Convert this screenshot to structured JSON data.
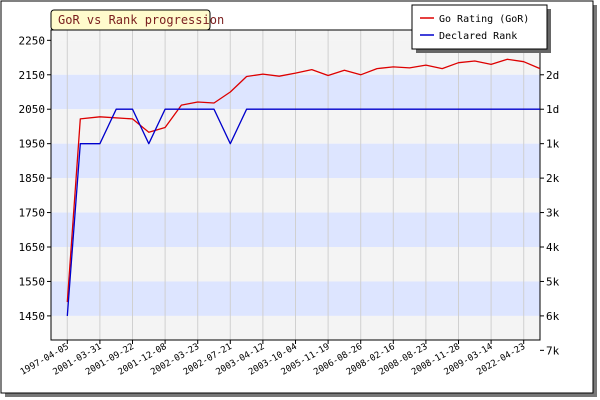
{
  "chart_data": {
    "type": "line",
    "title": "GoR vs Rank progression",
    "categories": [
      "1997-04-05",
      "2001-03-31",
      "2001-09-22",
      "2001-12-08",
      "2002-03-23",
      "2002-07-21",
      "2003-04-12",
      "2003-10-04",
      "2005-11-19",
      "2006-08-26",
      "2008-02-16",
      "2008-08-23",
      "2008-11-28",
      "2009-03-14",
      "2022-04-23"
    ],
    "y_left": {
      "ticks": [
        2250,
        2150,
        2050,
        1950,
        1850,
        1750,
        1650,
        1550,
        1450
      ],
      "ylim": [
        1380,
        2280
      ]
    },
    "y_right": {
      "ticks": [
        "2d",
        "1d",
        "1k",
        "2k",
        "3k",
        "4k",
        "5k",
        "6k",
        "7k"
      ]
    },
    "grid": true,
    "legend_position": "top-right",
    "series": [
      {
        "name": "Go Rating (GoR)",
        "color": "#dd0000",
        "axis": "left",
        "x": [
          0,
          0.4,
          1,
          2,
          2.5,
          3,
          3.5,
          4,
          4.5,
          5,
          5.5,
          6,
          6.5,
          7,
          7.5,
          8,
          8.5,
          9,
          9.5,
          10,
          10.5,
          11,
          11.5,
          12,
          12.5,
          13,
          13.5,
          14,
          14.5
        ],
        "y": [
          1490,
          2022,
          2028,
          2022,
          1983,
          1997,
          2062,
          2071,
          2068,
          2100,
          2145,
          2152,
          2146,
          2155,
          2165,
          2148,
          2163,
          2150,
          2168,
          2173,
          2170,
          2178,
          2168,
          2185,
          2190,
          2180,
          2195,
          2188,
          2168
        ]
      },
      {
        "name": "Declared Rank",
        "color": "#0000cc",
        "axis": "right",
        "x": [
          0,
          0.4,
          1,
          1.5,
          2,
          2.5,
          3,
          3.5,
          4,
          4.5,
          5,
          5.5,
          6,
          6.5,
          7,
          7.5,
          8,
          8.5,
          9,
          9.5,
          10,
          10.5,
          11,
          11.5,
          12,
          12.5,
          13,
          13.5,
          14,
          14.5
        ],
        "y": [
          "6k",
          "1k",
          "1k",
          "1d",
          "1d",
          "1k",
          "1d",
          "1d",
          "1d",
          "1d",
          "1k",
          "1d",
          "1d",
          "1d",
          "1d",
          "1d",
          "1d",
          "1d",
          "1d",
          "1d",
          "1d",
          "1d",
          "1d",
          "1d",
          "1d",
          "1d",
          "1d",
          "1d",
          "1d",
          "1d"
        ]
      }
    ]
  }
}
